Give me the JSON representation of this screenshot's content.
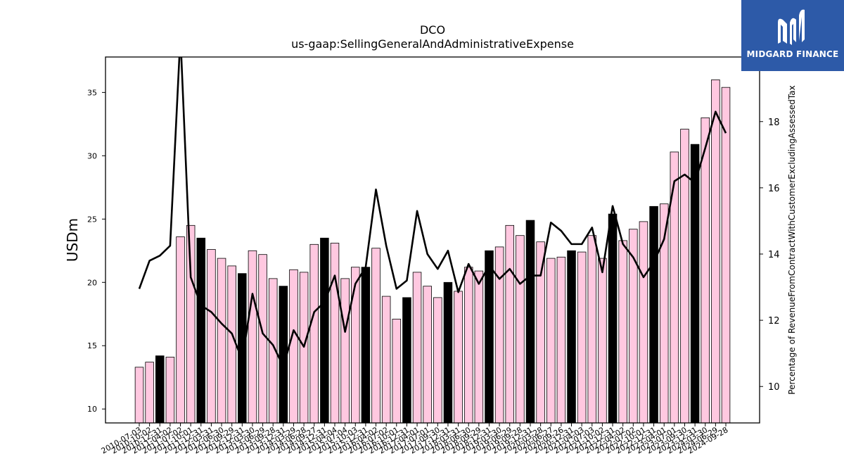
{
  "chart_data": {
    "type": "bar",
    "title": "DCO",
    "subtitle": "us-gaap:SellingGeneralAndAdministrativeExpense",
    "ylabel": "USDm",
    "y2label": "Percentage of RevenueFromContractWithCustomerExcludingAssessedTax",
    "ylim": [
      8.9,
      37.8
    ],
    "y2lim": [
      8.9,
      19.95
    ],
    "yticks": [
      10,
      15,
      20,
      25,
      30,
      35
    ],
    "y2ticks": [
      10,
      12,
      14,
      16,
      18
    ],
    "categories": [
      "2010-07-03",
      "2010-10-02",
      "2010-12-31",
      "2011-04-02",
      "2011-07-02",
      "2011-10-01",
      "2011-12-31",
      "2012-03-31",
      "2012-06-30",
      "2012-09-29",
      "2012-12-31",
      "2013-03-30",
      "2013-06-29",
      "2013-09-28",
      "2013-12-31",
      "2014-03-29",
      "2014-06-28",
      "2014-09-27",
      "2014-12-31",
      "2015-04-04",
      "2015-07-04",
      "2015-10-03",
      "2015-12-31",
      "2016-04-02",
      "2016-07-02",
      "2016-10-01",
      "2016-12-31",
      "2017-04-01",
      "2017-07-01",
      "2017-09-30",
      "2017-12-31",
      "2018-03-31",
      "2018-06-30",
      "2018-09-29",
      "2018-12-31",
      "2019-03-30",
      "2019-06-29",
      "2019-09-28",
      "2019-12-31",
      "2020-03-28",
      "2020-06-27",
      "2020-09-26",
      "2020-12-31",
      "2021-04-03",
      "2021-07-03",
      "2021-10-02",
      "2021-12-31",
      "2022-04-02",
      "2022-07-02",
      "2022-10-01",
      "2022-12-31",
      "2023-04-01",
      "2023-07-01",
      "2023-09-30",
      "2023-12-31",
      "2024-03-30",
      "2024-06-29",
      "2024-09-28"
    ],
    "series": [
      {
        "kind": "bar",
        "values": [
          13.3,
          13.7,
          14.2,
          14.1,
          23.6,
          24.5,
          23.5,
          22.6,
          21.9,
          21.3,
          20.7,
          22.5,
          22.2,
          20.3,
          19.7,
          21.0,
          20.8,
          23.0,
          23.5,
          23.1,
          20.3,
          21.2,
          21.2,
          22.7,
          18.9,
          17.1,
          18.8,
          20.8,
          19.7,
          18.8,
          20.0,
          19.3,
          21.2,
          20.9,
          22.5,
          22.8,
          24.5,
          23.7,
          24.9,
          23.2,
          21.9,
          22.0,
          22.5,
          22.4,
          23.7,
          21.9,
          25.4,
          23.3,
          24.2,
          24.8,
          26.0,
          26.2,
          30.3,
          32.1,
          30.9,
          33.0,
          36.0,
          35.4
        ],
        "colors": {
          "normal": "#ffc8e0",
          "q4": "#000000",
          "edge": "#000000"
        }
      },
      {
        "kind": "line",
        "axis": "right",
        "values": [
          12.95,
          13.8,
          13.95,
          14.25,
          20.6,
          13.3,
          12.45,
          12.25,
          11.9,
          11.6,
          10.8,
          12.8,
          11.6,
          11.25,
          10.6,
          11.7,
          11.2,
          12.25,
          12.55,
          13.35,
          11.65,
          13.1,
          13.6,
          15.95,
          14.25,
          12.95,
          13.2,
          15.3,
          14.0,
          13.55,
          14.1,
          12.85,
          13.7,
          13.1,
          13.65,
          13.25,
          13.55,
          13.1,
          13.35,
          13.35,
          14.95,
          14.7,
          14.3,
          14.3,
          14.8,
          13.45,
          15.45,
          14.3,
          13.9,
          13.3,
          13.75,
          14.45,
          16.2,
          16.4,
          16.15,
          17.2,
          18.3,
          17.65
        ],
        "color": "#000000"
      }
    ],
    "grid": false,
    "legend": "none"
  },
  "logo": {
    "text": "MIDGARD FINANCE",
    "bg": "#2d5aa8"
  }
}
